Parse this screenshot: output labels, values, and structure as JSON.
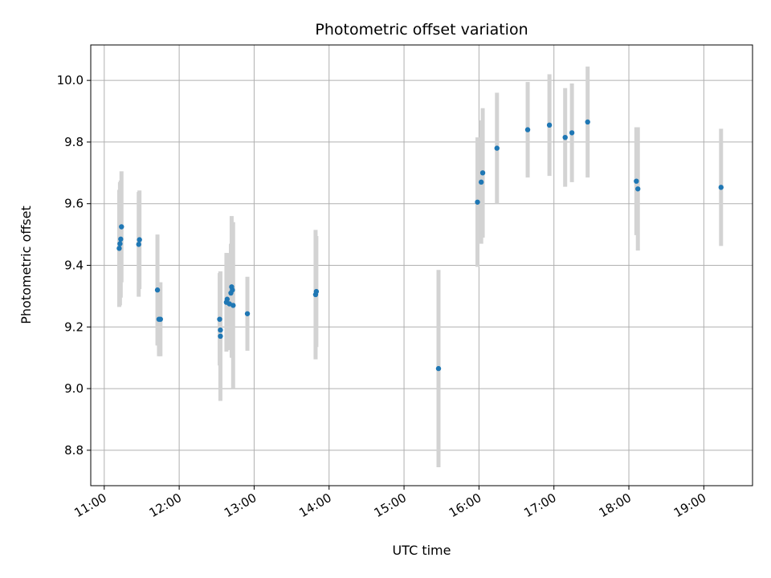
{
  "chart_data": {
    "type": "scatter",
    "title": "Photometric offset variation",
    "xlabel": "UTC time",
    "ylabel": "Photometric offset",
    "grid": true,
    "xlim": [
      10.82,
      19.65
    ],
    "ylim": [
      8.685,
      10.115
    ],
    "x_ticks": [
      {
        "value": 11,
        "label": "11:00"
      },
      {
        "value": 12,
        "label": "12:00"
      },
      {
        "value": 13,
        "label": "13:00"
      },
      {
        "value": 14,
        "label": "14:00"
      },
      {
        "value": 15,
        "label": "15:00"
      },
      {
        "value": 16,
        "label": "16:00"
      },
      {
        "value": 17,
        "label": "17:00"
      },
      {
        "value": 18,
        "label": "18:00"
      },
      {
        "value": 19,
        "label": "19:00"
      }
    ],
    "y_ticks": [
      {
        "value": 8.8,
        "label": "8.8"
      },
      {
        "value": 9.0,
        "label": "9.0"
      },
      {
        "value": 9.2,
        "label": "9.2"
      },
      {
        "value": 9.4,
        "label": "9.4"
      },
      {
        "value": 9.6,
        "label": "9.6"
      },
      {
        "value": 9.8,
        "label": "9.8"
      },
      {
        "value": 10.0,
        "label": "10.0"
      }
    ],
    "point_color": "#1f77b4",
    "errorbar_color": "#d3d3d3",
    "points": [
      {
        "x": 11.2,
        "y": 9.455,
        "err": 0.19
      },
      {
        "x": 11.21,
        "y": 9.47,
        "err": 0.2
      },
      {
        "x": 11.22,
        "y": 9.485,
        "err": 0.19
      },
      {
        "x": 11.23,
        "y": 9.525,
        "err": 0.18
      },
      {
        "x": 11.46,
        "y": 9.468,
        "err": 0.17
      },
      {
        "x": 11.47,
        "y": 9.483,
        "err": 0.16
      },
      {
        "x": 11.71,
        "y": 9.32,
        "err": 0.18
      },
      {
        "x": 11.73,
        "y": 9.225,
        "err": 0.12
      },
      {
        "x": 11.75,
        "y": 9.225,
        "err": 0.12
      },
      {
        "x": 12.54,
        "y": 9.225,
        "err": 0.15
      },
      {
        "x": 12.55,
        "y": 9.19,
        "err": 0.19
      },
      {
        "x": 12.55,
        "y": 9.17,
        "err": 0.21
      },
      {
        "x": 12.63,
        "y": 9.28,
        "err": 0.16
      },
      {
        "x": 12.64,
        "y": 9.29,
        "err": 0.15
      },
      {
        "x": 12.67,
        "y": 9.275,
        "err": 0.15
      },
      {
        "x": 12.69,
        "y": 9.31,
        "err": 0.16
      },
      {
        "x": 12.7,
        "y": 9.33,
        "err": 0.23
      },
      {
        "x": 12.71,
        "y": 9.32,
        "err": 0.22
      },
      {
        "x": 12.72,
        "y": 9.27,
        "err": 0.27
      },
      {
        "x": 12.91,
        "y": 9.243,
        "err": 0.12
      },
      {
        "x": 13.82,
        "y": 9.305,
        "err": 0.21
      },
      {
        "x": 13.83,
        "y": 9.315,
        "err": 0.18
      },
      {
        "x": 15.46,
        "y": 9.065,
        "err": 0.32
      },
      {
        "x": 15.98,
        "y": 9.605,
        "err": 0.21
      },
      {
        "x": 16.03,
        "y": 9.67,
        "err": 0.2
      },
      {
        "x": 16.05,
        "y": 9.7,
        "err": 0.21
      },
      {
        "x": 16.24,
        "y": 9.78,
        "err": 0.18
      },
      {
        "x": 16.65,
        "y": 9.84,
        "err": 0.155
      },
      {
        "x": 16.94,
        "y": 9.855,
        "err": 0.165
      },
      {
        "x": 17.15,
        "y": 9.815,
        "err": 0.16
      },
      {
        "x": 17.24,
        "y": 9.83,
        "err": 0.16
      },
      {
        "x": 17.45,
        "y": 9.865,
        "err": 0.18
      },
      {
        "x": 18.1,
        "y": 9.673,
        "err": 0.175
      },
      {
        "x": 18.12,
        "y": 9.648,
        "err": 0.2
      },
      {
        "x": 19.23,
        "y": 9.653,
        "err": 0.19
      }
    ]
  }
}
